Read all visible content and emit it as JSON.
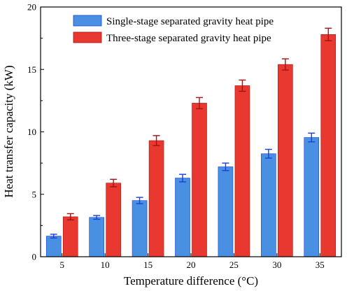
{
  "chart_data": {
    "type": "bar",
    "xlabel": "Temperature difference (°C)",
    "ylabel": "Heat transfer capacity (kW)",
    "categories": [
      "5",
      "10",
      "15",
      "20",
      "25",
      "30",
      "35"
    ],
    "ylim": [
      0,
      20
    ],
    "yticks": [
      "0",
      "5",
      "10",
      "15",
      "20"
    ],
    "legend_position": "top-right",
    "grid": false,
    "series": [
      {
        "name": "Single-stage separated gravity heat pipe",
        "color": "#4a90e2",
        "error_color": "#1a3fd6",
        "values": [
          1.65,
          3.15,
          4.5,
          6.3,
          7.2,
          8.25,
          9.55
        ],
        "errors": [
          0.15,
          0.15,
          0.25,
          0.3,
          0.3,
          0.35,
          0.35
        ]
      },
      {
        "name": "Three-stage separated gravity heat pipe",
        "color": "#e8382f",
        "error_color": "#a0140f",
        "values": [
          3.2,
          5.9,
          9.3,
          12.3,
          13.7,
          15.4,
          17.8
        ],
        "errors": [
          0.25,
          0.3,
          0.4,
          0.45,
          0.45,
          0.45,
          0.5
        ]
      }
    ]
  }
}
